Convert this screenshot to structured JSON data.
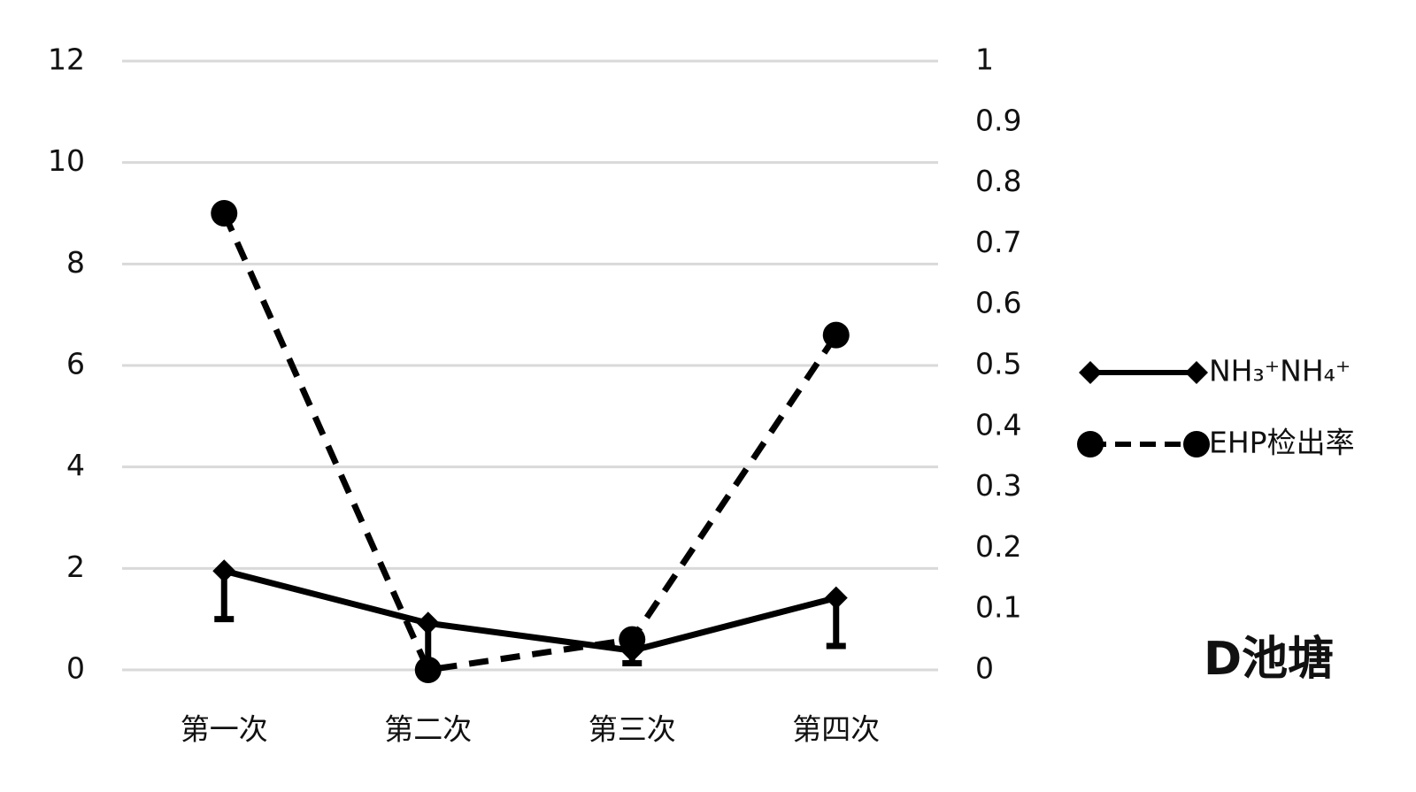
{
  "chart_data": {
    "type": "line",
    "categories": [
      "第一次",
      "第二次",
      "第三次",
      "第四次"
    ],
    "series": [
      {
        "name": "NH₃⁺NH₄⁺",
        "color": "#000000",
        "values": [
          1.95,
          0.92,
          0.38,
          1.42
        ],
        "errors": [
          0.95,
          0.85,
          0.25,
          0.95
        ],
        "marker": "diamond",
        "dash": false
      },
      {
        "name": "EHP检出率",
        "color": "#000000",
        "values": [
          0.75,
          0,
          0.05,
          0.55
        ],
        "axis": "y2",
        "marker": "circle",
        "dash": true
      }
    ],
    "ylim": [
      0,
      12
    ],
    "yticks": [
      0,
      2,
      4,
      6,
      8,
      10,
      12
    ],
    "y2lim": [
      0,
      1
    ],
    "y2ticks": [
      0,
      0.1,
      0.2,
      0.3,
      0.4,
      0.5,
      0.6,
      0.7,
      0.8,
      0.9,
      1
    ],
    "grid": true,
    "legend": "right",
    "annotation": "D池塘"
  }
}
